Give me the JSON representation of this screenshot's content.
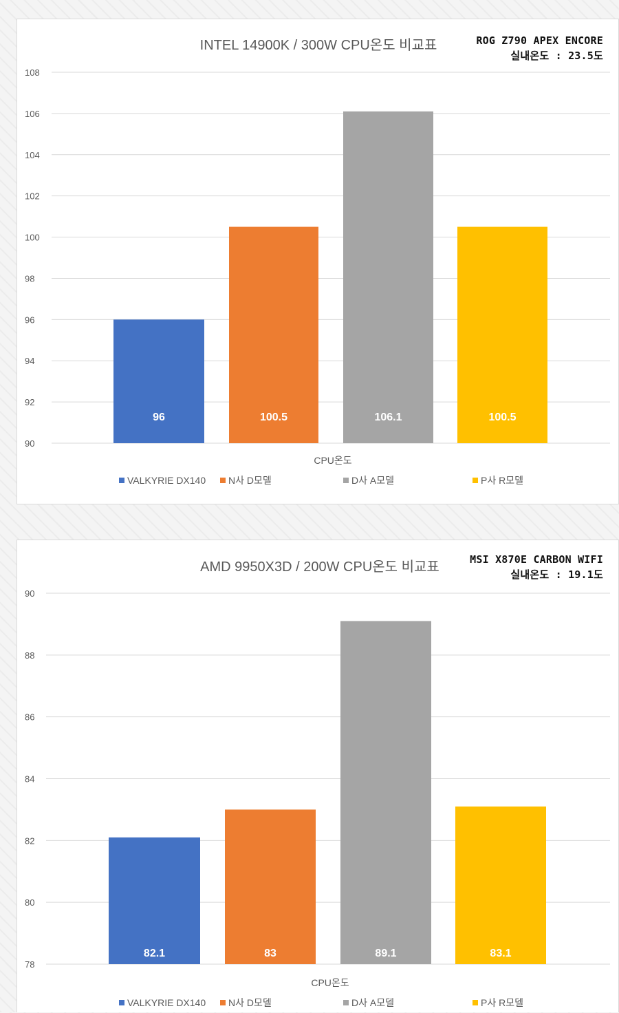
{
  "charts": [
    {
      "board": "ROG Z790 APEX ENCORE",
      "room_temp": "실내온도 : 23.5도"
    },
    {
      "board": "MSI X870E CARBON WIFI",
      "room_temp": "실내온도 : 19.1도"
    }
  ],
  "chart_data": [
    {
      "type": "bar",
      "title": "INTEL 14900K / 300W CPU온도 비교표",
      "xlabel": "CPU온도",
      "ylabel": "",
      "categories": [
        "CPU온도"
      ],
      "series": [
        {
          "name": "VALKYRIE DX140",
          "values": [
            96
          ],
          "color": "#4472c4"
        },
        {
          "name": "N사 D모델",
          "values": [
            100.5
          ],
          "color": "#ed7d31"
        },
        {
          "name": "D사 A모델",
          "values": [
            106.1
          ],
          "color": "#a5a5a5"
        },
        {
          "name": "P사 R모델",
          "values": [
            100.5
          ],
          "color": "#ffc000"
        }
      ],
      "ylim": [
        90,
        108
      ],
      "yticks": [
        90,
        92,
        94,
        96,
        98,
        100,
        102,
        104,
        106,
        108
      ],
      "data_labels": [
        "96",
        "100.5",
        "106.1",
        "100.5"
      ],
      "grid": true,
      "legend": "bottom"
    },
    {
      "type": "bar",
      "title": "AMD 9950X3D / 200W CPU온도 비교표",
      "xlabel": "CPU온도",
      "ylabel": "",
      "categories": [
        "CPU온도"
      ],
      "series": [
        {
          "name": "VALKYRIE DX140",
          "values": [
            82.1
          ],
          "color": "#4472c4"
        },
        {
          "name": "N사 D모델",
          "values": [
            83
          ],
          "color": "#ed7d31"
        },
        {
          "name": "D사 A모델",
          "values": [
            89.1
          ],
          "color": "#a5a5a5"
        },
        {
          "name": "P사 R모델",
          "values": [
            83.1
          ],
          "color": "#ffc000"
        }
      ],
      "ylim": [
        78,
        90
      ],
      "yticks": [
        78,
        80,
        82,
        84,
        86,
        88,
        90
      ],
      "data_labels": [
        "82.1",
        "83",
        "89.1",
        "83.1"
      ],
      "grid": true,
      "legend": "bottom"
    }
  ]
}
